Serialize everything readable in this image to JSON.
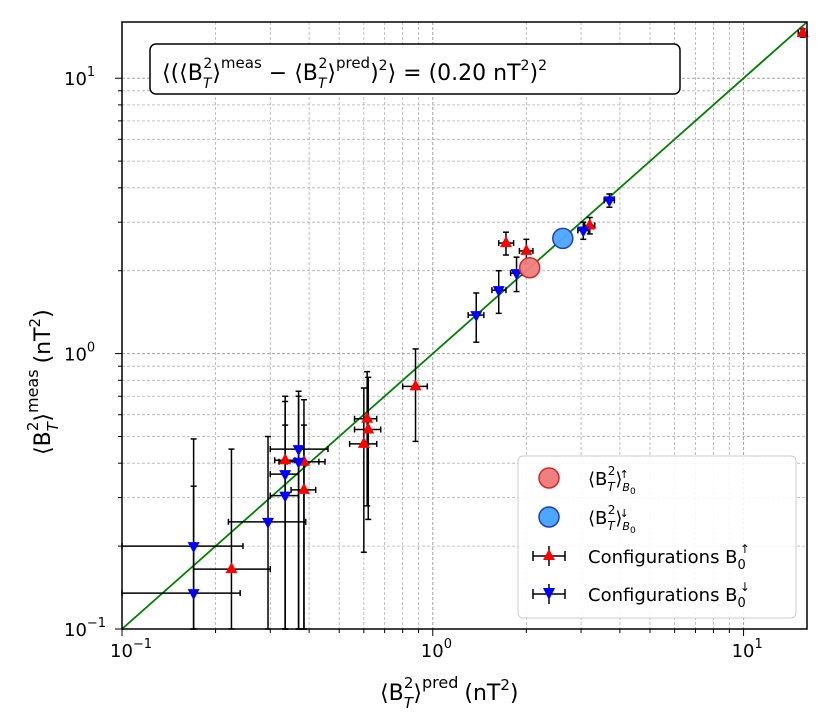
{
  "chart_data": {
    "type": "scatter",
    "x_scale": "log",
    "y_scale": "log",
    "xlim": [
      0.1,
      16
    ],
    "ylim": [
      0.1,
      16
    ],
    "xlabel_base": "⟨B",
    "xlabel_tail": "⟩",
    "xlabel_sub": "T",
    "xlabel_sup2": "2",
    "xlabel_sup": "pred",
    "xlabel_unit": "(nT",
    "ylabel_base": "⟨B",
    "ylabel_tail": "⟩",
    "ylabel_sub": "T",
    "ylabel_sup2": "2",
    "ylabel_sup": "meas",
    "ylabel_unit": "(nT",
    "unit_close": ")",
    "unit_sup": "2",
    "x_ticks": [
      {
        "value": 0.1,
        "base": "10",
        "exp": "−1"
      },
      {
        "value": 1,
        "base": "10",
        "exp": "0"
      },
      {
        "value": 10,
        "base": "10",
        "exp": "1"
      }
    ],
    "y_ticks": [
      {
        "value": 0.1,
        "base": "10",
        "exp": "−1"
      },
      {
        "value": 1,
        "base": "10",
        "exp": "0"
      },
      {
        "value": 10,
        "base": "10",
        "exp": "1"
      }
    ],
    "grid": true,
    "reference_line": {
      "label": "y = x",
      "color": "#008000"
    },
    "annotation": "⟨(⟨B_T²⟩^meas − ⟨B_T²⟩^pred)²⟩ = (0.20 nT²)²",
    "annotation_parts": {
      "t1": "⟨(⟨B",
      "t2": "T",
      "t3": "2",
      "t4": "⟩",
      "t5": "meas",
      "t6": " − ⟨B",
      "t7": "T",
      "t8": "2",
      "t9": "⟩",
      "t10": "pred",
      "t11": ")",
      "t12": "2",
      "t13": "⟩ = (0.20 nT",
      "t14": "2",
      "t15": ")",
      "t16": "2"
    },
    "series": [
      {
        "name": "Configurations B0↑",
        "marker": "triangle-up",
        "color": "#ff0000",
        "points": [
          {
            "x": 0.225,
            "y": 0.165,
            "xerr": [
              0.17,
              0.3
            ],
            "yerr": [
              0.1,
              0.45
            ]
          },
          {
            "x": 0.335,
            "y": 0.41,
            "xerr": [
              0.31,
              0.36
            ],
            "yerr": [
              0.1,
              0.7
            ]
          },
          {
            "x": 0.385,
            "y": 0.405,
            "xerr": [
              0.34,
              0.45
            ],
            "yerr": [
              0.1,
              0.68
            ]
          },
          {
            "x": 0.385,
            "y": 0.32,
            "xerr": [
              0.35,
              0.42
            ],
            "yerr": [
              0.1,
              0.55
            ]
          },
          {
            "x": 0.6,
            "y": 0.47,
            "xerr": [
              0.54,
              0.66
            ],
            "yerr": [
              0.19,
              0.75
            ]
          },
          {
            "x": 0.615,
            "y": 0.58,
            "xerr": [
              0.56,
              0.66
            ],
            "yerr": [
              0.28,
              0.86
            ]
          },
          {
            "x": 0.62,
            "y": 0.53,
            "xerr": [
              0.56,
              0.68
            ],
            "yerr": [
              0.25,
              0.82
            ]
          },
          {
            "x": 0.88,
            "y": 0.76,
            "xerr": [
              0.8,
              0.96
            ],
            "yerr": [
              0.48,
              1.04
            ]
          },
          {
            "x": 1.72,
            "y": 2.52,
            "xerr": [
              1.63,
              1.82
            ],
            "yerr": [
              2.28,
              2.76
            ]
          },
          {
            "x": 2.0,
            "y": 2.36,
            "xerr": [
              1.9,
              2.1
            ],
            "yerr": [
              2.12,
              2.6
            ]
          },
          {
            "x": 3.2,
            "y": 2.92,
            "xerr": [
              3.08,
              3.32
            ],
            "yerr": [
              2.72,
              3.12
            ]
          },
          {
            "x": 15.5,
            "y": 14.6,
            "xerr": [
              15.0,
              16.2
            ],
            "yerr": [
              14.1,
              15.1
            ]
          }
        ]
      },
      {
        "name": "Configurations B0↓",
        "marker": "triangle-down",
        "color": "#0000ff",
        "points": [
          {
            "x": 0.17,
            "y": 0.2,
            "xerr": [
              0.1,
              0.245
            ],
            "yerr": [
              0.1,
              0.49
            ]
          },
          {
            "x": 0.17,
            "y": 0.135,
            "xerr": [
              0.1,
              0.24
            ],
            "yerr": [
              0.1,
              0.33
            ]
          },
          {
            "x": 0.295,
            "y": 0.245,
            "xerr": [
              0.22,
              0.39
            ],
            "yerr": [
              0.1,
              0.5
            ]
          },
          {
            "x": 0.335,
            "y": 0.305,
            "xerr": [
              0.3,
              0.37
            ],
            "yerr": [
              0.1,
              0.55
            ]
          },
          {
            "x": 0.335,
            "y": 0.365,
            "xerr": [
              0.3,
              0.37
            ],
            "yerr": [
              0.1,
              0.67
            ]
          },
          {
            "x": 0.37,
            "y": 0.405,
            "xerr": [
              0.32,
              0.43
            ],
            "yerr": [
              0.1,
              0.7
            ]
          },
          {
            "x": 0.37,
            "y": 0.45,
            "xerr": [
              0.3,
              0.46
            ],
            "yerr": [
              0.1,
              0.73
            ]
          },
          {
            "x": 1.38,
            "y": 1.38,
            "xerr": [
              1.3,
              1.46
            ],
            "yerr": [
              1.1,
              1.66
            ]
          },
          {
            "x": 1.63,
            "y": 1.7,
            "xerr": [
              1.55,
              1.72
            ],
            "yerr": [
              1.4,
              2.0
            ]
          },
          {
            "x": 1.86,
            "y": 1.96,
            "xerr": [
              1.78,
              1.94
            ],
            "yerr": [
              1.68,
              2.24
            ]
          },
          {
            "x": 3.05,
            "y": 2.8,
            "xerr": [
              2.93,
              3.17
            ],
            "yerr": [
              2.6,
              3.0
            ]
          },
          {
            "x": 3.7,
            "y": 3.6,
            "xerr": [
              3.56,
              3.84
            ],
            "yerr": [
              3.4,
              3.8
            ]
          }
        ]
      }
    ],
    "summary_points": [
      {
        "name": "⟨B_T²⟩_B0↑",
        "x": 2.05,
        "y": 2.05,
        "color": "#f08080",
        "edge": "#d62728"
      },
      {
        "name": "⟨B_T²⟩_B0↓",
        "x": 2.62,
        "y": 2.62,
        "color": "#4da6ff",
        "edge": "#1f3fbf"
      }
    ],
    "legend": {
      "placement": "lower-right",
      "entries": [
        {
          "kind": "circle",
          "color": "#f08080",
          "edge": "#d62728",
          "base": "⟨B",
          "sub": "T",
          "sup": "2",
          "tail": "⟩",
          "sub2": "B",
          "sub2b": "0",
          "sup2": "↑"
        },
        {
          "kind": "circle",
          "color": "#4da6ff",
          "edge": "#1f3fbf",
          "base": "⟨B",
          "sub": "T",
          "sup": "2",
          "tail": "⟩",
          "sub2": "B",
          "sub2b": "0",
          "sup2": "↓"
        },
        {
          "kind": "tri-up",
          "color": "#ff0000",
          "text": "Configurations B",
          "sub": "0",
          "sup": "↑"
        },
        {
          "kind": "tri-down",
          "color": "#0000ff",
          "text": "Configurations B",
          "sub": "0",
          "sup": "↓"
        }
      ]
    }
  }
}
